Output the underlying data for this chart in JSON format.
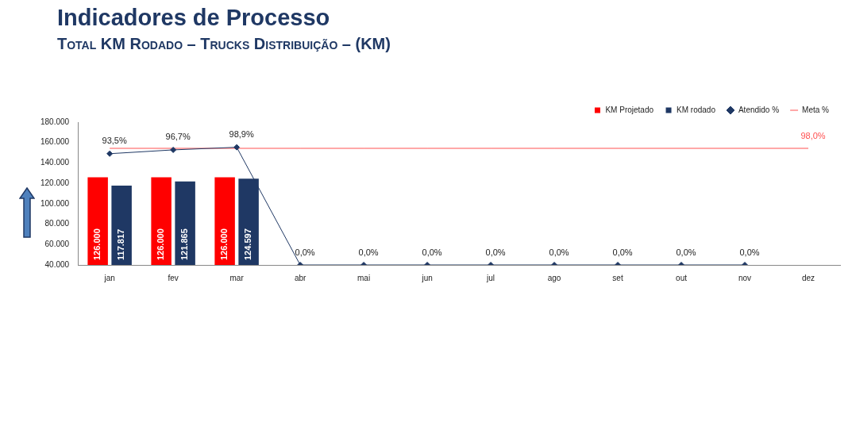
{
  "chart_data": {
    "type": "bar",
    "title": "Indicadores de Processo",
    "subtitle": "Total KM Rodado – Trucks Distribuição – (KM)",
    "categories": [
      "jan",
      "fev",
      "mar",
      "abr",
      "mai",
      "jun",
      "jul",
      "ago",
      "set",
      "out",
      "nov",
      "dez"
    ],
    "series": [
      {
        "name": "KM Projetado",
        "color": "#ff0000",
        "values": [
          126000,
          126000,
          126000,
          null,
          null,
          null,
          null,
          null,
          null,
          null,
          null,
          null
        ],
        "value_labels": [
          "126.000",
          "126.000",
          "126.000",
          null,
          null,
          null,
          null,
          null,
          null,
          null,
          null,
          null
        ]
      },
      {
        "name": "KM rodado",
        "color": "#1f3864",
        "values": [
          117817,
          121865,
          124597,
          null,
          null,
          null,
          null,
          null,
          null,
          null,
          null,
          null
        ],
        "value_labels": [
          "117.817",
          "121.865",
          "124.597",
          null,
          null,
          null,
          null,
          null,
          null,
          null,
          null,
          null
        ]
      },
      {
        "name": "Atendido %",
        "type": "line",
        "axis": "y2",
        "marker": "diamond",
        "color": "#1f3864",
        "values": [
          93.5,
          96.7,
          98.9,
          0,
          0,
          0,
          0,
          0,
          0,
          0,
          0,
          null
        ],
        "value_labels": [
          "93,5%",
          "96,7%",
          "98,9%",
          "0,0%",
          "0,0%",
          "0,0%",
          "0,0%",
          "0,0%",
          "0,0%",
          "0,0%",
          "0,0%",
          null
        ]
      },
      {
        "name": "Meta %",
        "type": "line",
        "axis": "y2",
        "marker": "none",
        "color": "#ff5050",
        "values": [
          98,
          98,
          98,
          98,
          98,
          98,
          98,
          98,
          98,
          98,
          98,
          98
        ],
        "value_labels": [
          null,
          null,
          null,
          null,
          null,
          null,
          null,
          null,
          null,
          null,
          null,
          "98,0%"
        ]
      }
    ],
    "ylim": [
      40000,
      180000
    ],
    "yticks": [
      {
        "value": 40000,
        "label": "40.000"
      },
      {
        "value": 60000,
        "label": "60.000"
      },
      {
        "value": 80000,
        "label": "80.000"
      },
      {
        "value": 100000,
        "label": "100.000"
      },
      {
        "value": 120000,
        "label": "120.000"
      },
      {
        "value": 140000,
        "label": "140.000"
      },
      {
        "value": 160000,
        "label": "160.000"
      },
      {
        "value": 180000,
        "label": "180.000"
      }
    ],
    "y2lim": [
      0,
      120
    ],
    "grid": false,
    "legend": "top right"
  }
}
